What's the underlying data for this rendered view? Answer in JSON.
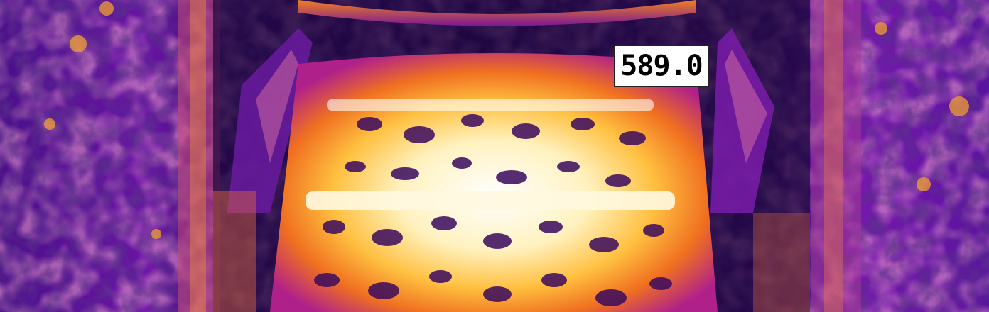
{
  "thermal_image": {
    "palette": "ironbow",
    "palette_colors": [
      "#1a0638",
      "#3c0a78",
      "#7a10a8",
      "#b21c9a",
      "#e0406a",
      "#f4801e",
      "#ffc83a",
      "#fff6d0",
      "#ffffff"
    ]
  },
  "readout": {
    "temperature_value": "589.0"
  }
}
